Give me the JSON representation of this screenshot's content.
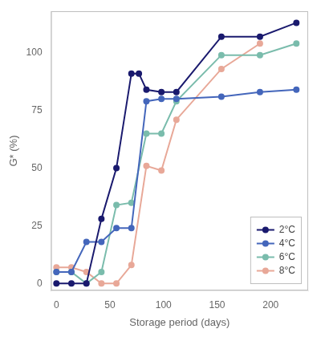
{
  "chart_data": {
    "type": "line",
    "xlabel": "Storage period (days)",
    "ylabel": "G* (%)",
    "series": [
      {
        "name": "2°C",
        "color": "#1a1a6e",
        "x": [
          0,
          14,
          28,
          42,
          56,
          70,
          77,
          84,
          98,
          112,
          154,
          190,
          224
        ],
        "values": [
          0,
          0,
          0,
          28,
          50,
          91,
          91,
          84,
          83,
          83,
          107,
          107,
          113
        ]
      },
      {
        "name": "4°C",
        "color": "#4466bb",
        "x": [
          0,
          14,
          28,
          42,
          56,
          70,
          84,
          98,
          112,
          154,
          190,
          224
        ],
        "values": [
          5,
          5,
          18,
          18,
          24,
          24,
          79,
          80,
          80,
          81,
          83,
          84
        ]
      },
      {
        "name": "6°C",
        "color": "#7abcac",
        "x": [
          0,
          14,
          28,
          42,
          56,
          70,
          84,
          98,
          112,
          154,
          190,
          224
        ],
        "values": [
          5,
          5,
          0,
          5,
          34,
          35,
          65,
          65,
          79,
          99,
          99,
          104
        ]
      },
      {
        "name": "8°C",
        "color": "#e8a898",
        "x": [
          0,
          14,
          28,
          42,
          56,
          70,
          84,
          98,
          112,
          154,
          190
        ],
        "values": [
          7,
          7,
          5,
          0,
          0,
          8,
          51,
          49,
          71,
          93,
          104
        ]
      }
    ],
    "xlim": [
      -5,
      235
    ],
    "ylim": [
      -3,
      118
    ],
    "xticks": [
      0,
      50,
      100,
      150,
      200
    ],
    "yticks": [
      0,
      25,
      50,
      75,
      100
    ],
    "marker": "o",
    "grid": false,
    "legend": "lower right"
  }
}
